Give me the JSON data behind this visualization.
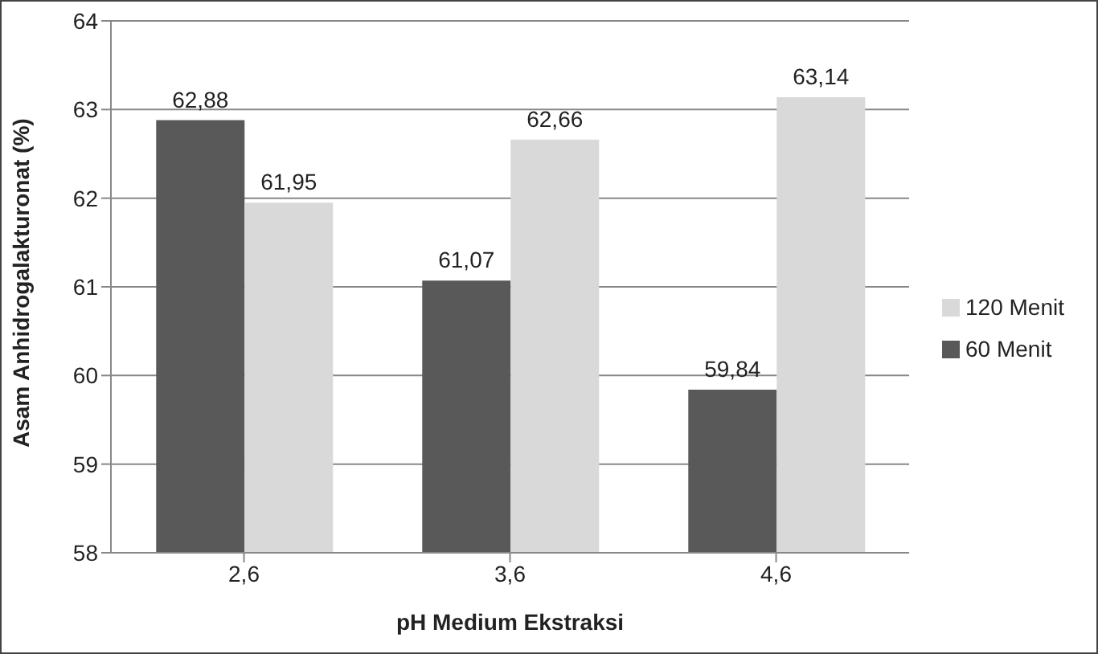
{
  "chart_data": {
    "type": "bar",
    "xlabel": "pH Medium Ekstraksi",
    "ylabel": "Asam Anhidrogalakturonat (%)",
    "categories": [
      "2,6",
      "3,6",
      "4,6"
    ],
    "series": [
      {
        "name": "60 Menit",
        "color": "#595959",
        "values": [
          62.88,
          61.07,
          59.84
        ],
        "value_labels": [
          "62,88",
          "61,07",
          "59,84"
        ]
      },
      {
        "name": "120 Menit",
        "color": "#d9d9d9",
        "values": [
          61.95,
          62.66,
          63.14
        ],
        "value_labels": [
          "61,95",
          "62,66",
          "63,14"
        ]
      }
    ],
    "ylim": [
      58,
      64
    ],
    "yticks": [
      58,
      59,
      60,
      61,
      62,
      63,
      64
    ],
    "grid": "y",
    "legend": "right"
  }
}
